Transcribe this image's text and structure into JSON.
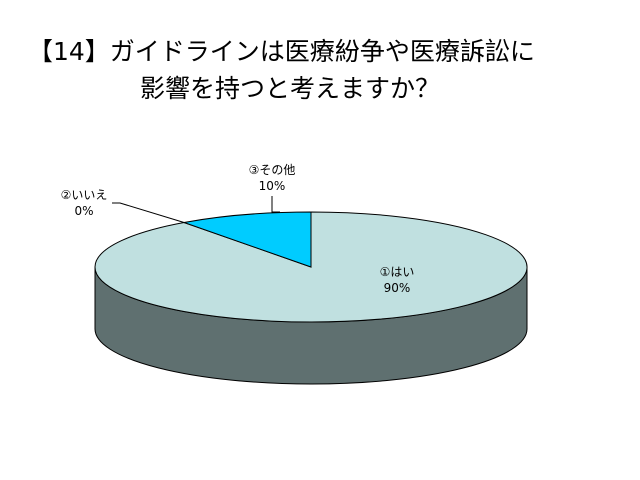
{
  "chart_data": {
    "type": "pie3d",
    "title_lines": [
      "【14】ガイドラインは医療紛争や医療訴訟に",
      "影響を持つと考えますか？"
    ],
    "categories": [
      "①はい",
      "②いいえ",
      "③その他"
    ],
    "values": [
      90,
      0,
      10
    ],
    "value_labels": [
      "90%",
      "0%",
      "10%"
    ],
    "colors": [
      "#c0e0e0",
      "#c0e0e0",
      "#00ccff"
    ]
  }
}
